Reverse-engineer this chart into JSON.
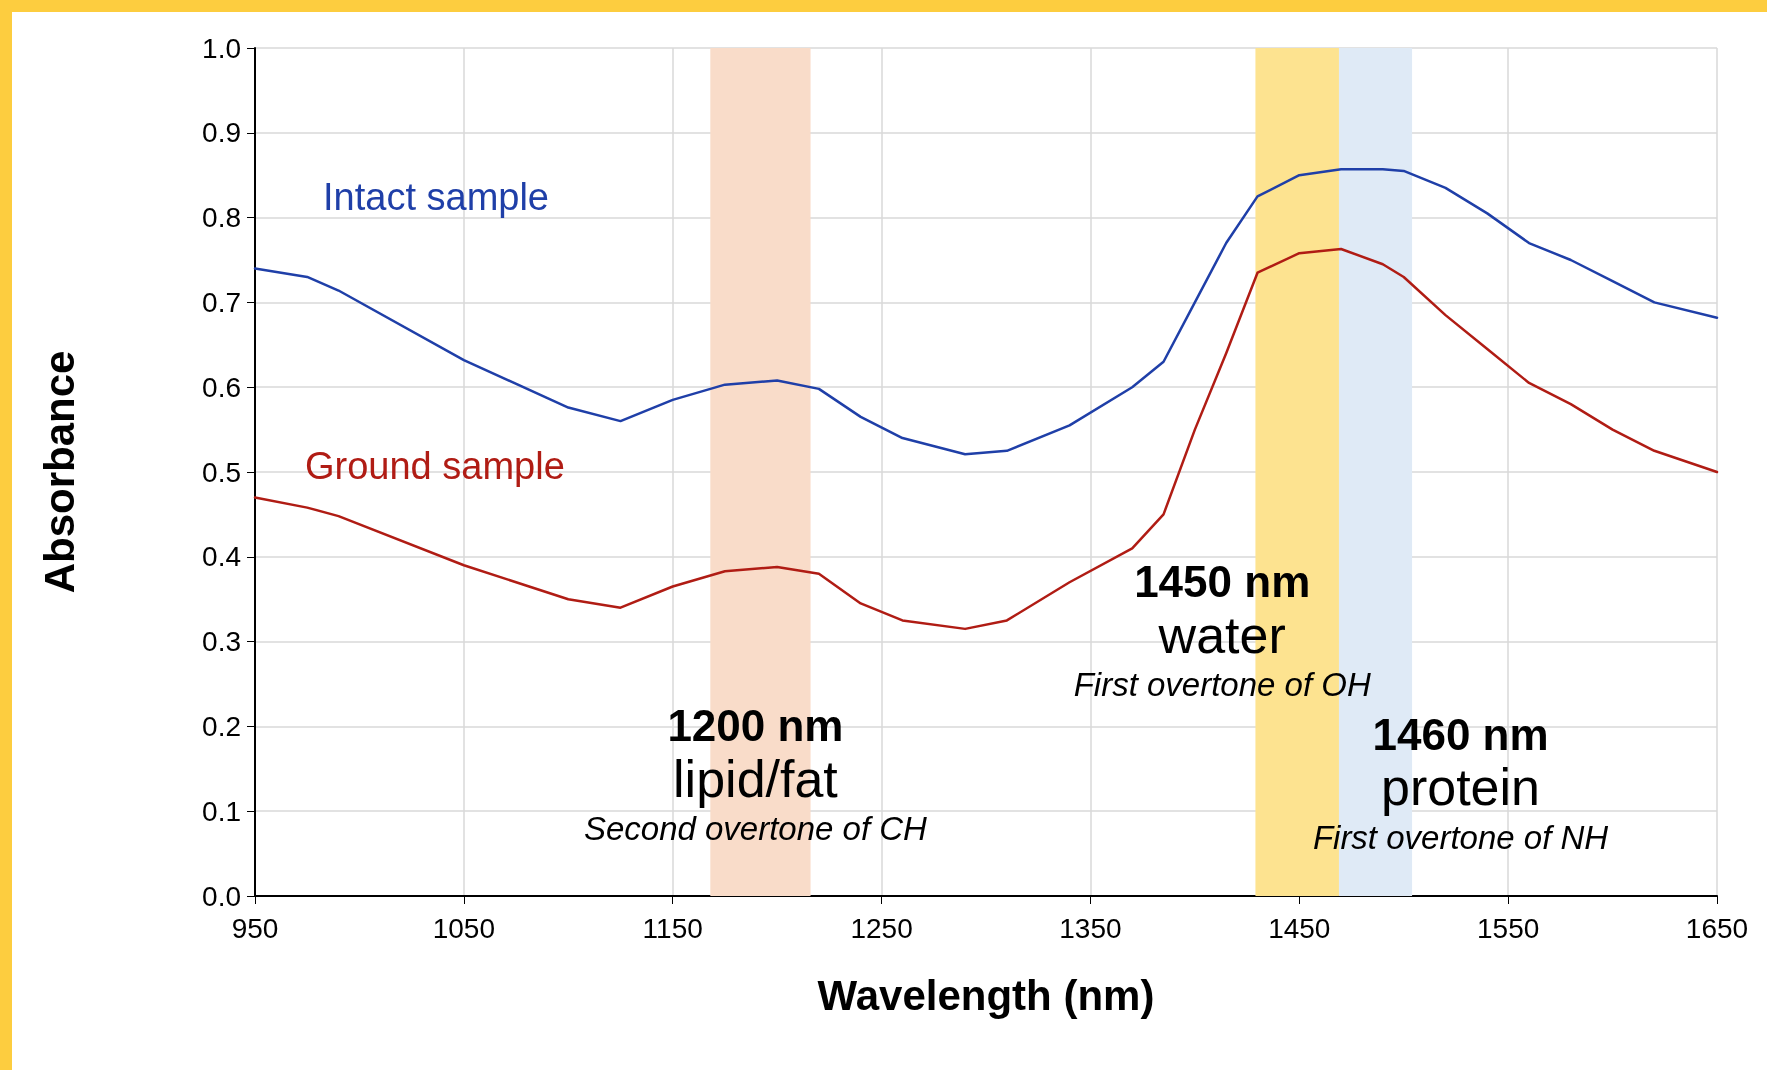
{
  "chart_data": {
    "type": "line",
    "xlabel": "Wavelength (nm)",
    "ylabel": "Absorbance",
    "xlim": [
      950,
      1650
    ],
    "xticks": [
      950,
      1050,
      1150,
      1250,
      1350,
      1450,
      1550,
      1650
    ],
    "ylim": [
      0,
      1
    ],
    "yticks": [
      {
        "value": 0,
        "label": "0.0"
      },
      0.1,
      0.2,
      0.3,
      0.4,
      0.5,
      0.6,
      0.7,
      0.8,
      0.9,
      {
        "value": 1,
        "label": "1.0"
      }
    ],
    "grid": true,
    "legend": false,
    "marker": "none",
    "line_style": "solid",
    "x": [
      950,
      975,
      990,
      1050,
      1100,
      1125,
      1150,
      1175,
      1200,
      1220,
      1240,
      1260,
      1290,
      1310,
      1340,
      1370,
      1385,
      1400,
      1415,
      1430,
      1450,
      1470,
      1490,
      1500,
      1520,
      1540,
      1560,
      1580,
      1600,
      1620,
      1650
    ],
    "series": [
      {
        "name": "Intact sample",
        "color": "#1f3fa8",
        "values": [
          0.74,
          0.73,
          0.714,
          0.632,
          0.576,
          0.56,
          0.585,
          0.603,
          0.608,
          0.598,
          0.565,
          0.54,
          0.521,
          0.525,
          0.555,
          0.6,
          0.63,
          0.7,
          0.77,
          0.825,
          0.85,
          0.857,
          0.857,
          0.855,
          0.835,
          0.805,
          0.77,
          0.75,
          0.725,
          0.7,
          0.682
        ]
      },
      {
        "name": "Ground sample",
        "color": "#b01c14",
        "values": [
          0.47,
          0.458,
          0.448,
          0.39,
          0.35,
          0.34,
          0.365,
          0.383,
          0.388,
          0.38,
          0.345,
          0.325,
          0.315,
          0.325,
          0.37,
          0.41,
          0.45,
          0.55,
          0.64,
          0.735,
          0.758,
          0.763,
          0.745,
          0.73,
          0.685,
          0.645,
          0.605,
          0.58,
          0.55,
          0.525,
          0.5
        ]
      }
    ],
    "bands": [
      {
        "axis": "x",
        "from": 1168,
        "to": 1216,
        "color": "#f9dcc9",
        "label": "1200 nm\nlipid/fat\nSecond overtone of CH"
      },
      {
        "axis": "x",
        "from": 1429,
        "to": 1469,
        "color": "#fde390",
        "label": "1450 nm\nwater\nFirst overtone of OH"
      },
      {
        "axis": "x",
        "from": 1469,
        "to": 1504,
        "color": "#dfeaf6",
        "label": "1460 nm\nprotein\nFirst overtone of NH"
      }
    ]
  }
}
